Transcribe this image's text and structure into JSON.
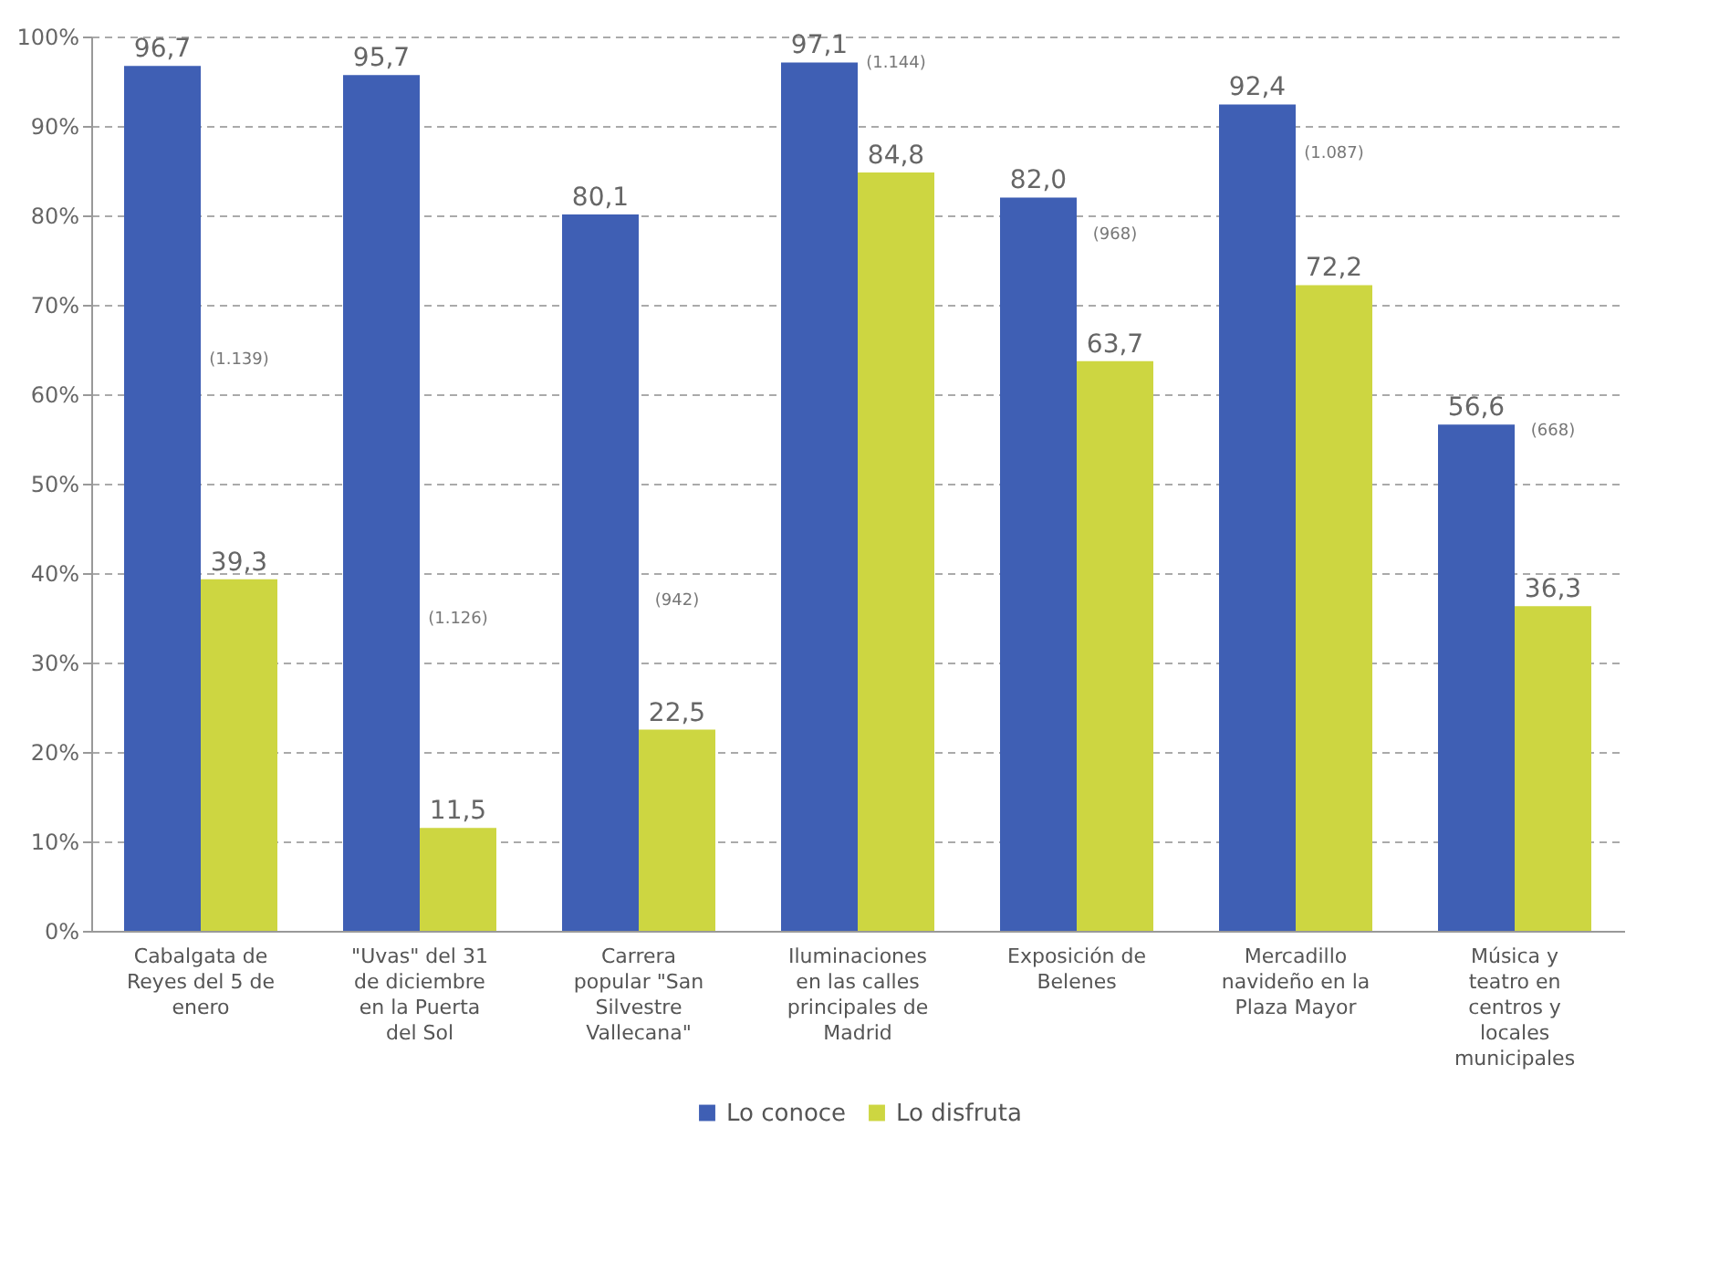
{
  "chart_data": {
    "type": "bar",
    "categories": [
      "Cabalgata de Reyes del 5 de enero",
      "\"Uvas\" del 31 de diciembre en la Puerta del Sol",
      "Carrera popular \"San Silvestre Vallecana\"",
      "Iluminaciones en las calles principales de Madrid",
      "Exposición de Belenes",
      "Mercadillo navideño en la Plaza Mayor",
      "Música y teatro en centros y locales municipales"
    ],
    "series": [
      {
        "name": "Lo conoce",
        "color": "#3f5fb4",
        "values": [
          96.7,
          95.7,
          80.1,
          97.1,
          82.0,
          92.4,
          56.6
        ],
        "value_labels": [
          "96,7",
          "95,7",
          "80,1",
          "97,1",
          "82,0",
          "92,4",
          "56,6"
        ]
      },
      {
        "name": "Lo disfruta",
        "color": "#cdd641",
        "values": [
          39.3,
          11.5,
          22.5,
          84.8,
          63.7,
          72.2,
          36.3
        ],
        "value_labels": [
          "39,3",
          "11,5",
          "22,5",
          "84,8",
          "63,7",
          "72,2",
          "36,3"
        ]
      }
    ],
    "ylim": [
      0,
      100
    ],
    "yticks": [
      {
        "value": 0,
        "label": "0%"
      },
      {
        "value": 10,
        "label": "10%"
      },
      {
        "value": 20,
        "label": "20%"
      },
      {
        "value": 30,
        "label": "30%"
      },
      {
        "value": 40,
        "label": "40%"
      },
      {
        "value": 50,
        "label": "50%"
      },
      {
        "value": 60,
        "label": "60%"
      },
      {
        "value": 70,
        "label": "70%"
      },
      {
        "value": 80,
        "label": "80%"
      },
      {
        "value": 90,
        "label": "90%"
      },
      {
        "value": 100,
        "label": "100%"
      }
    ],
    "annotations": [
      {
        "text": "(1.139)",
        "x": "Cabalgata de Reyes del 5 de enero",
        "y": 64
      },
      {
        "text": "(1.126)",
        "x": "\"Uvas\" del 31 de diciembre en la Puerta del Sol",
        "y": 35
      },
      {
        "text": "(942)",
        "x": "Carrera popular \"San Silvestre Vallecana\"",
        "y": 37
      },
      {
        "text": "(1.144)",
        "x": "Iluminaciones en las calles principales de Madrid",
        "y": 97.1
      },
      {
        "text": "(968)",
        "x": "Exposición de Belenes",
        "y": 78
      },
      {
        "text": "(1.087)",
        "x": "Mercadillo navideño en la Plaza Mayor",
        "y": 87
      },
      {
        "text": "(668)",
        "x": "Música y teatro en centros y locales municipales",
        "y": 56
      }
    ],
    "grid": "y",
    "legend": "bottom"
  }
}
